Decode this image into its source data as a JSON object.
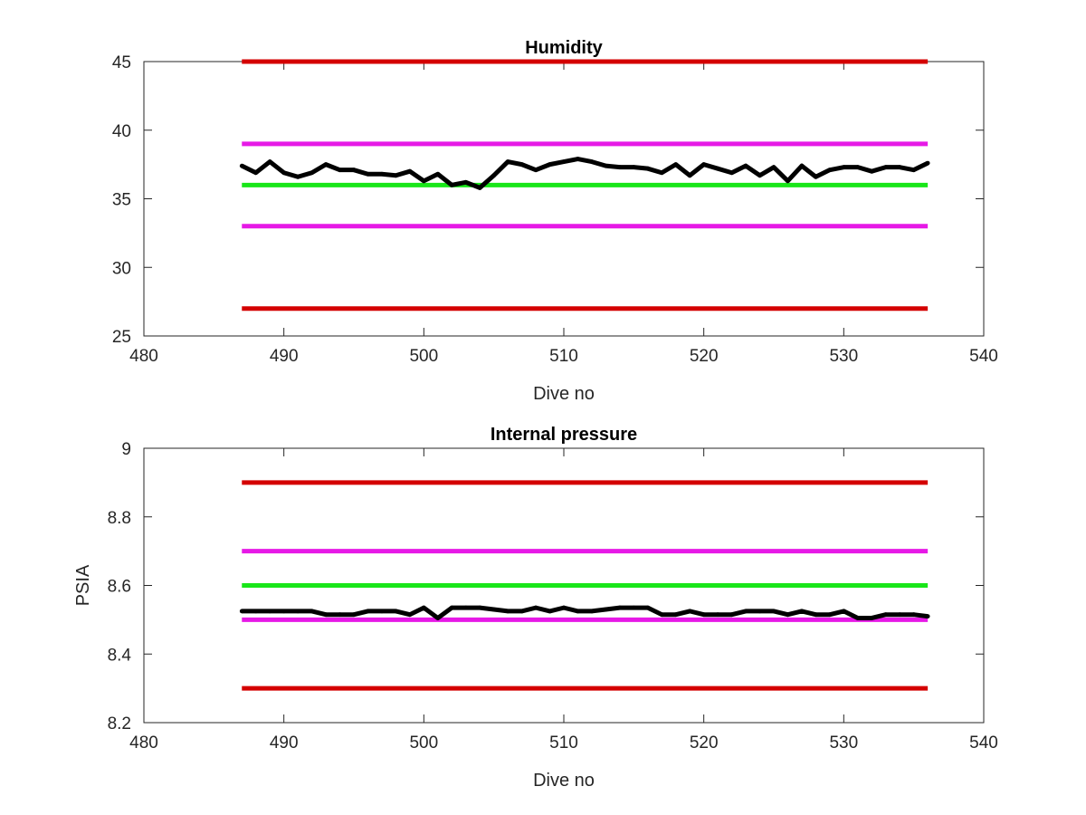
{
  "chart_data": [
    {
      "type": "line",
      "title": "Humidity",
      "xlabel": "Dive no",
      "ylabel": "",
      "xlim": [
        480,
        540
      ],
      "ylim": [
        25,
        45
      ],
      "xticks": [
        "480",
        "490",
        "500",
        "510",
        "520",
        "530",
        "540"
      ],
      "yticks": [
        "25",
        "30",
        "35",
        "40",
        "45"
      ],
      "grid": false,
      "reference_lines": [
        {
          "y": 45,
          "x_range": [
            487,
            536
          ],
          "color": "#d40000"
        },
        {
          "y": 39,
          "x_range": [
            487,
            536
          ],
          "color": "#e619e6"
        },
        {
          "y": 36,
          "x_range": [
            487,
            536
          ],
          "color": "#19e619"
        },
        {
          "y": 33,
          "x_range": [
            487,
            536
          ],
          "color": "#e619e6"
        },
        {
          "y": 27,
          "x_range": [
            487,
            536
          ],
          "color": "#d40000"
        }
      ],
      "series": [
        {
          "color": "#000000",
          "x": [
            487,
            488,
            489,
            490,
            491,
            492,
            493,
            494,
            495,
            496,
            497,
            498,
            499,
            500,
            501,
            502,
            503,
            504,
            505,
            506,
            507,
            508,
            509,
            510,
            511,
            512,
            513,
            514,
            515,
            516,
            517,
            518,
            519,
            520,
            521,
            522,
            523,
            524,
            525,
            526,
            527,
            528,
            529,
            530,
            531,
            532,
            533,
            534,
            535,
            536
          ],
          "values": [
            37.4,
            36.9,
            37.7,
            36.9,
            36.6,
            36.9,
            37.5,
            37.1,
            37.1,
            36.8,
            36.8,
            36.7,
            37.0,
            36.3,
            36.8,
            36.0,
            36.2,
            35.8,
            36.7,
            37.7,
            37.5,
            37.1,
            37.5,
            37.7,
            37.9,
            37.7,
            37.4,
            37.3,
            37.3,
            37.2,
            36.9,
            37.5,
            36.7,
            37.5,
            37.2,
            36.9,
            37.4,
            36.7,
            37.3,
            36.3,
            37.4,
            36.6,
            37.1,
            37.3,
            37.3,
            37.0,
            37.3,
            37.3,
            37.1,
            37.6
          ]
        }
      ]
    },
    {
      "type": "line",
      "title": "Internal pressure",
      "xlabel": "Dive no",
      "ylabel": "PSIA",
      "xlim": [
        480,
        540
      ],
      "ylim": [
        8.2,
        9.0
      ],
      "xticks": [
        "480",
        "490",
        "500",
        "510",
        "520",
        "530",
        "540"
      ],
      "yticks": [
        "8.2",
        "8.4",
        "8.6",
        "8.8",
        "9"
      ],
      "grid": false,
      "reference_lines": [
        {
          "y": 8.9,
          "x_range": [
            487,
            536
          ],
          "color": "#d40000"
        },
        {
          "y": 8.7,
          "x_range": [
            487,
            536
          ],
          "color": "#e619e6"
        },
        {
          "y": 8.6,
          "x_range": [
            487,
            536
          ],
          "color": "#19e619"
        },
        {
          "y": 8.5,
          "x_range": [
            487,
            536
          ],
          "color": "#e619e6"
        },
        {
          "y": 8.3,
          "x_range": [
            487,
            536
          ],
          "color": "#d40000"
        }
      ],
      "series": [
        {
          "color": "#000000",
          "x": [
            487,
            488,
            489,
            490,
            491,
            492,
            493,
            494,
            495,
            496,
            497,
            498,
            499,
            500,
            501,
            502,
            503,
            504,
            505,
            506,
            507,
            508,
            509,
            510,
            511,
            512,
            513,
            514,
            515,
            516,
            517,
            518,
            519,
            520,
            521,
            522,
            523,
            524,
            525,
            526,
            527,
            528,
            529,
            530,
            531,
            532,
            533,
            534,
            535,
            536
          ],
          "values": [
            8.525,
            8.525,
            8.525,
            8.525,
            8.525,
            8.525,
            8.515,
            8.515,
            8.515,
            8.525,
            8.525,
            8.525,
            8.515,
            8.535,
            8.505,
            8.535,
            8.535,
            8.535,
            8.53,
            8.525,
            8.525,
            8.535,
            8.525,
            8.535,
            8.525,
            8.525,
            8.53,
            8.535,
            8.535,
            8.535,
            8.515,
            8.515,
            8.525,
            8.515,
            8.515,
            8.515,
            8.525,
            8.525,
            8.525,
            8.515,
            8.525,
            8.515,
            8.515,
            8.525,
            8.505,
            8.505,
            8.515,
            8.515,
            8.515,
            8.51
          ]
        }
      ]
    }
  ]
}
